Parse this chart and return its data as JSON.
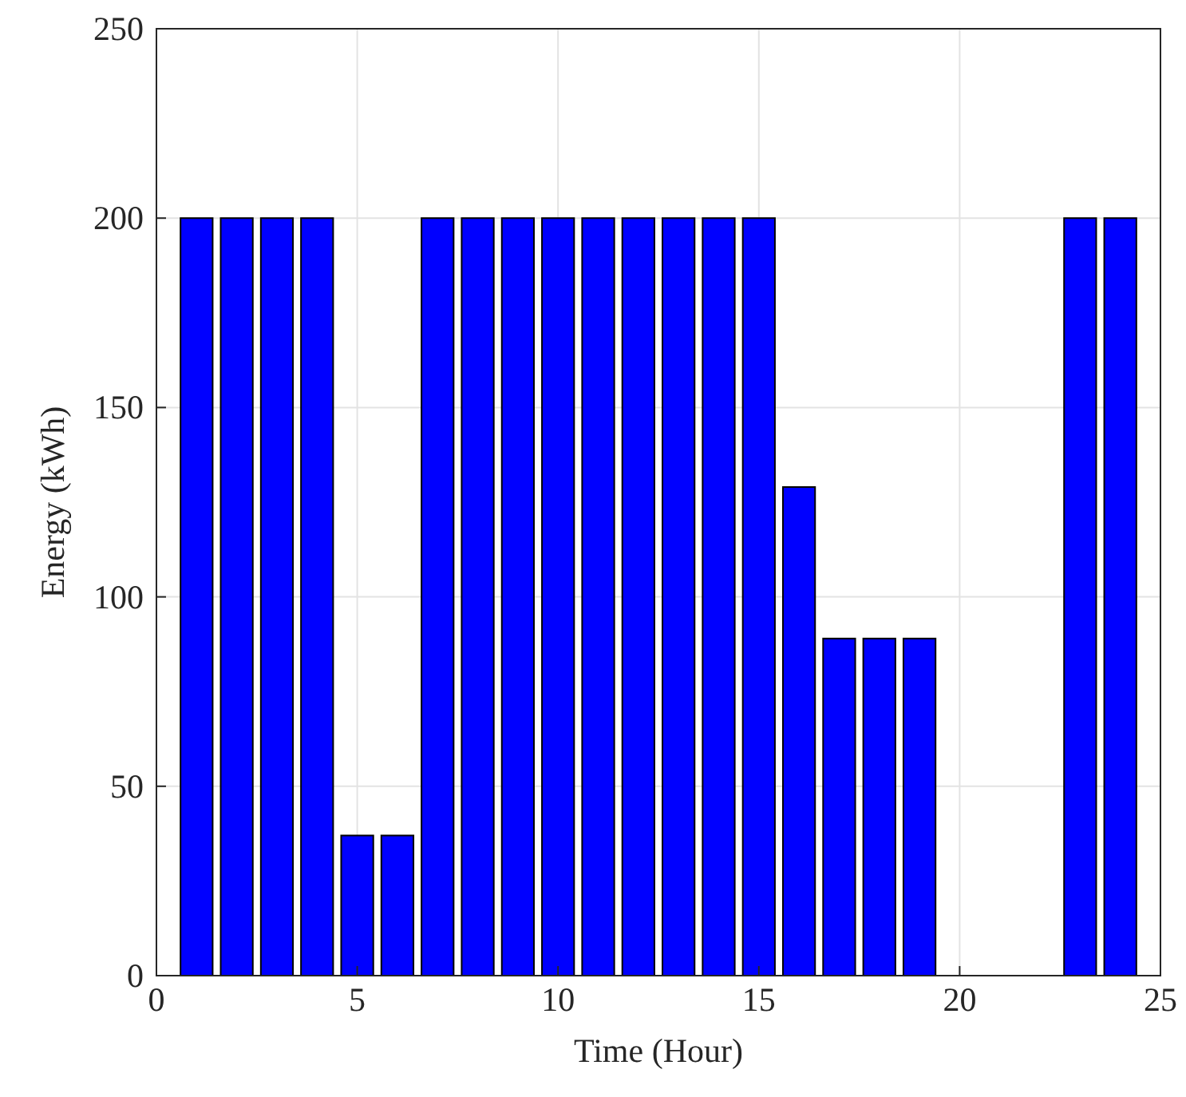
{
  "chart_data": {
    "type": "bar",
    "xlabel": "Time (Hour)",
    "ylabel": "Energy (kWh)",
    "x": [
      1,
      2,
      3,
      4,
      5,
      6,
      7,
      8,
      9,
      10,
      11,
      12,
      13,
      14,
      15,
      16,
      17,
      18,
      19,
      20,
      21,
      22,
      23,
      24
    ],
    "values": [
      200,
      200,
      200,
      200,
      37,
      37,
      200,
      200,
      200,
      200,
      200,
      200,
      200,
      200,
      200,
      129,
      89,
      89,
      89,
      0,
      0,
      0,
      200,
      200
    ],
    "color": "#0000ff",
    "xlim": [
      0,
      25
    ],
    "xticks": [
      0,
      5,
      10,
      15,
      20,
      25
    ],
    "ylim": [
      0,
      250
    ],
    "yticks": [
      0,
      50,
      100,
      150,
      200,
      250
    ],
    "grid": true
  }
}
